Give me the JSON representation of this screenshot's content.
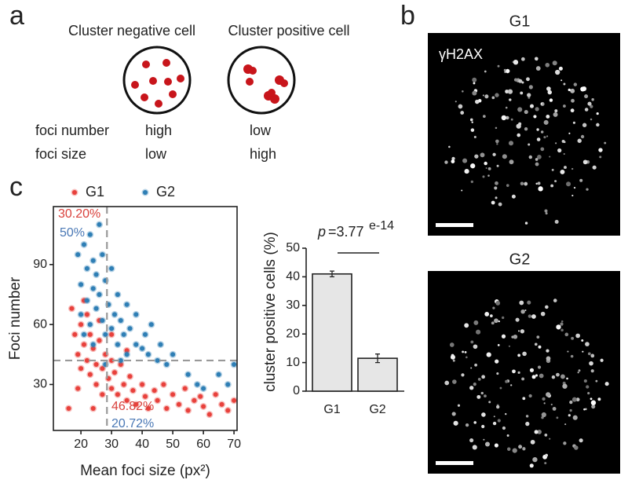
{
  "panels": {
    "a": "a",
    "b": "b",
    "c": "c"
  },
  "diagram": {
    "negative_label": "Cluster negative cell",
    "positive_label": "Cluster positive cell",
    "rows": [
      {
        "label": "foci number",
        "negative": "high",
        "positive": "low"
      },
      {
        "label": "foci size",
        "negative": "low",
        "positive": "high"
      }
    ]
  },
  "images": [
    {
      "title": "G1",
      "stain": "γH2AX"
    },
    {
      "title": "G2"
    }
  ],
  "chart_data": [
    {
      "type": "scatter",
      "xlabel": "Mean foci size (px²)",
      "ylabel": "Foci number",
      "xlim": [
        11,
        71
      ],
      "ylim": [
        7,
        119
      ],
      "xticks": [
        20,
        30,
        40,
        50,
        60,
        70
      ],
      "yticks": [
        30,
        60,
        90
      ],
      "thresholds": {
        "x": 28.5,
        "y": 42
      },
      "annotations": [
        {
          "text": "30.20%",
          "color": "#d9413c"
        },
        {
          "text": "50%",
          "color": "#4a78b5"
        },
        {
          "text": "46.82%",
          "color": "#d9413c"
        },
        {
          "text": "20.72%",
          "color": "#4a78b5"
        }
      ],
      "series": [
        {
          "name": "G1",
          "color": "#e8413c",
          "x": [
            17,
            18,
            19,
            20,
            20,
            21,
            22,
            22,
            23,
            23,
            24,
            25,
            25,
            26,
            27,
            27,
            28,
            29,
            30,
            30,
            31,
            32,
            33,
            34,
            35,
            36,
            37,
            38,
            40,
            41,
            42,
            44,
            45,
            47,
            48,
            50,
            52,
            54,
            55,
            57,
            59,
            60,
            62,
            64,
            66,
            68,
            70,
            16,
            19,
            24,
            21,
            26,
            30,
            35
          ],
          "values": [
            68,
            55,
            45,
            60,
            38,
            50,
            42,
            65,
            35,
            55,
            48,
            40,
            30,
            52,
            38,
            25,
            45,
            33,
            42,
            28,
            36,
            25,
            40,
            30,
            22,
            34,
            27,
            20,
            30,
            24,
            18,
            27,
            22,
            30,
            18,
            25,
            20,
            28,
            17,
            22,
            24,
            19,
            15,
            25,
            20,
            17,
            22,
            18,
            28,
            18,
            72,
            62,
            55,
            47
          ]
        },
        {
          "name": "G2",
          "color": "#2f7fb5",
          "x": [
            19,
            20,
            20,
            21,
            22,
            22,
            23,
            23,
            24,
            24,
            25,
            25,
            26,
            26,
            27,
            27,
            28,
            28,
            29,
            30,
            30,
            31,
            32,
            32,
            33,
            34,
            35,
            35,
            36,
            38,
            38,
            40,
            41,
            42,
            43,
            45,
            46,
            48,
            50,
            55,
            58,
            60,
            65,
            68,
            70,
            21,
            24,
            28,
            33
          ],
          "values": [
            95,
            80,
            65,
            100,
            88,
            72,
            105,
            60,
            92,
            78,
            85,
            68,
            110,
            75,
            62,
            95,
            82,
            55,
            70,
            88,
            58,
            65,
            75,
            50,
            62,
            55,
            70,
            45,
            58,
            50,
            65,
            48,
            55,
            45,
            60,
            42,
            50,
            40,
            45,
            35,
            30,
            28,
            35,
            30,
            40,
            55,
            50,
            40,
            42
          ]
        }
      ]
    },
    {
      "type": "bar",
      "ylabel": "cluster positive cells (%)",
      "categories": [
        "G1",
        "G2"
      ],
      "values": [
        41,
        11.5
      ],
      "errors": [
        1,
        1.5
      ],
      "color": "#e6e6e6",
      "ylim": [
        0,
        50
      ],
      "yticks": [
        0,
        10,
        20,
        30,
        40,
        50
      ],
      "pvalue": {
        "symbol": "p",
        "value": "=3.77",
        "exponent": "e-14"
      }
    }
  ]
}
